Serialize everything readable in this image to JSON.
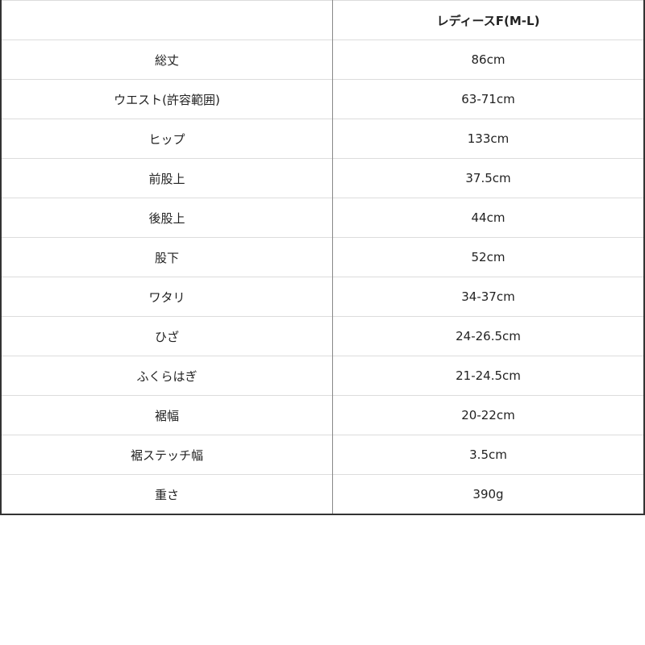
{
  "table": {
    "header": [
      "",
      "レディースF(M-L)"
    ],
    "rows": [
      [
        "総丈",
        "86cm"
      ],
      [
        "ウエスト(許容範囲)",
        "63-71cm"
      ],
      [
        "ヒップ",
        "133cm"
      ],
      [
        "前股上",
        "37.5cm"
      ],
      [
        "後股上",
        "44cm"
      ],
      [
        "股下",
        "52cm"
      ],
      [
        "ワタリ",
        "34-37cm"
      ],
      [
        "ひざ",
        "24-26.5cm"
      ],
      [
        "ふくらはぎ",
        "21-24.5cm"
      ],
      [
        "裾幅",
        "20-22cm"
      ],
      [
        "裾ステッチ幅",
        "3.5cm"
      ],
      [
        "重さ",
        "390g"
      ]
    ]
  }
}
